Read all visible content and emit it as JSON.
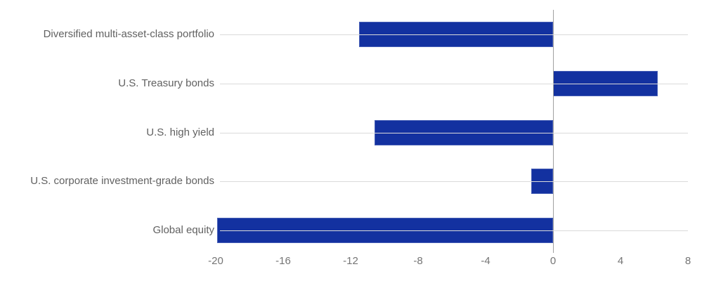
{
  "chart_data": {
    "type": "bar",
    "orientation": "horizontal",
    "title": "",
    "categories": [
      "Diversified multi-asset-class portfolio",
      "U.S. Treasury bonds",
      "U.S. high yield",
      "U.S. corporate investment-grade bonds",
      "Global equity"
    ],
    "values": [
      -11.5,
      6.2,
      -10.6,
      -1.3,
      -19.9
    ],
    "xlim": [
      -20,
      8
    ],
    "xticks": [
      -20,
      -16,
      -12,
      -8,
      -4,
      0,
      4,
      8
    ],
    "xtick_labels": [
      "-20",
      "-16",
      "-12",
      "-8",
      "-4",
      "0",
      "4",
      "8"
    ],
    "grid": true,
    "legend": "none",
    "colors": {
      "bar": "#1331a0",
      "gridline": "#dadada",
      "zero_line": "#a0a0a0",
      "category_label": "#616161",
      "tick_label": "#757575",
      "background": "#ffffff"
    }
  }
}
